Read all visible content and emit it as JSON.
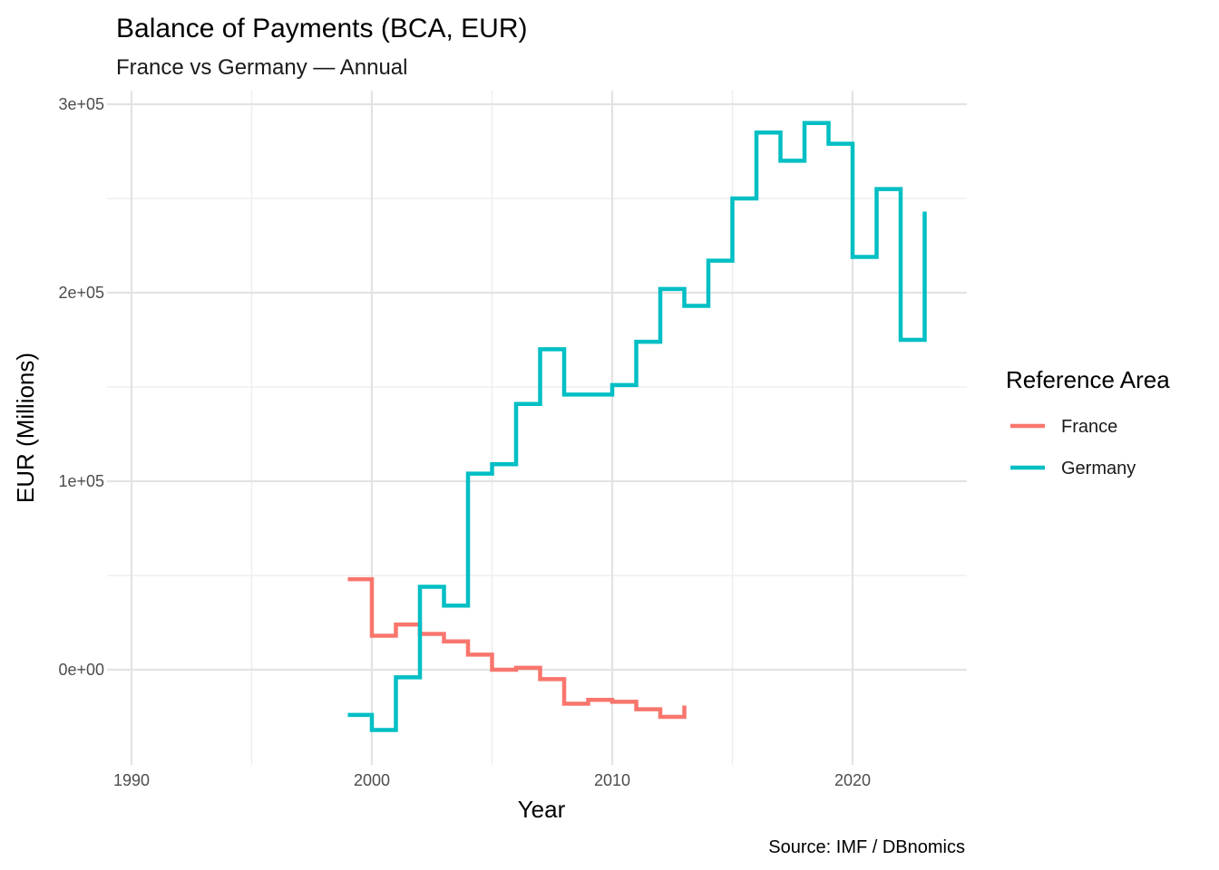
{
  "chart_data": {
    "type": "line",
    "step": "horizontal-vertical",
    "title": "Balance of Payments (BCA, EUR)",
    "subtitle": "France vs Germany — Annual",
    "xlabel": "Year",
    "ylabel": "EUR (Millions)",
    "caption": "Source: IMF / DBnomics",
    "xlim": [
      1990,
      2024.5
    ],
    "ylim": [
      -50000,
      300000
    ],
    "x_ticks": [
      1990,
      2000,
      2010,
      2020
    ],
    "x_tick_labels": [
      "1990",
      "2000",
      "2010",
      "2020"
    ],
    "x_minor_ticks": [
      1995,
      2005,
      2015
    ],
    "y_ticks": [
      0,
      100000,
      200000,
      300000
    ],
    "y_tick_labels": [
      "0e+00",
      "1e+05",
      "2e+05",
      "3e+05"
    ],
    "y_minor_ticks": [
      50000,
      150000,
      250000
    ],
    "grid": true,
    "legend": {
      "title": "Reference Area",
      "position": "right"
    },
    "series": [
      {
        "name": "France",
        "color": "#F8766D",
        "x": [
          1999,
          2000,
          2001,
          2002,
          2003,
          2004,
          2005,
          2006,
          2007,
          2008,
          2009,
          2010,
          2011,
          2012,
          2013
        ],
        "y": [
          48000,
          18000,
          24000,
          19000,
          15000,
          8000,
          0,
          1000,
          -5000,
          -18000,
          -16000,
          -17000,
          -21000,
          -25000,
          -19000
        ]
      },
      {
        "name": "Germany",
        "color": "#00BFC4",
        "x": [
          1999,
          2000,
          2001,
          2002,
          2003,
          2004,
          2005,
          2006,
          2007,
          2008,
          2009,
          2010,
          2011,
          2012,
          2013,
          2014,
          2015,
          2016,
          2017,
          2018,
          2019,
          2020,
          2021,
          2022,
          2023
        ],
        "y": [
          -24000,
          -32000,
          -4000,
          44000,
          34000,
          104000,
          109000,
          141000,
          170000,
          146000,
          146000,
          151000,
          174000,
          202000,
          193000,
          217000,
          250000,
          285000,
          270000,
          290000,
          279000,
          219000,
          255000,
          175000,
          243000
        ]
      }
    ]
  }
}
